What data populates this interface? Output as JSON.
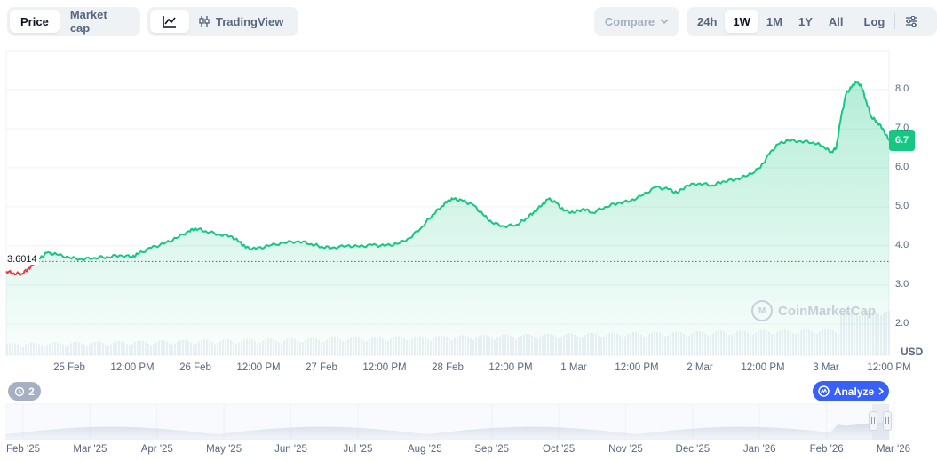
{
  "toolbar": {
    "type_tabs": [
      {
        "label": "Price",
        "active": true
      },
      {
        "label": "Market cap",
        "active": false
      }
    ],
    "view_tabs": [
      {
        "icon": "line-chart-icon",
        "label": "",
        "active": true
      },
      {
        "icon": "candlestick-icon",
        "label": "TradingView",
        "active": false
      }
    ],
    "compare_label": "Compare",
    "ranges": [
      {
        "label": "24h",
        "active": false
      },
      {
        "label": "1W",
        "active": true
      },
      {
        "label": "1M",
        "active": false
      },
      {
        "label": "1Y",
        "active": false
      },
      {
        "label": "All",
        "active": false
      }
    ],
    "scale_label": "Log",
    "settings_icon": "sliders-icon"
  },
  "chart_data": {
    "type": "line",
    "ylim": [
      1.2,
      9.0
    ],
    "yticks": [
      "2.0",
      "3.0",
      "4.0",
      "5.0",
      "6.0",
      "7.0",
      "8.0"
    ],
    "xticks": [
      "25 Feb",
      "12:00 PM",
      "26 Feb",
      "12:00 PM",
      "27 Feb",
      "12:00 PM",
      "28 Feb",
      "12:00 PM",
      "1 Mar",
      "12:00 PM",
      "2 Mar",
      "12:00 PM",
      "3 Mar",
      "12:00 PM"
    ],
    "xrange_days": [
      0,
      7
    ],
    "reference_price": 3.6014,
    "reference_label": "3.6014",
    "current_price": 6.7,
    "current_label": "6.7",
    "unit": "USD",
    "grid": true,
    "line_color": "#16c784",
    "down_color": "#ea3943",
    "points": [
      [
        0.0,
        3.35
      ],
      [
        0.06,
        3.3
      ],
      [
        0.12,
        3.28
      ],
      [
        0.17,
        3.4
      ],
      [
        0.22,
        3.55
      ],
      [
        0.27,
        3.68
      ],
      [
        0.32,
        3.82
      ],
      [
        0.4,
        3.78
      ],
      [
        0.5,
        3.7
      ],
      [
        0.6,
        3.66
      ],
      [
        0.7,
        3.7
      ],
      [
        0.8,
        3.72
      ],
      [
        0.9,
        3.76
      ],
      [
        1.0,
        3.72
      ],
      [
        1.05,
        3.8
      ],
      [
        1.15,
        3.95
      ],
      [
        1.25,
        4.05
      ],
      [
        1.35,
        4.2
      ],
      [
        1.45,
        4.38
      ],
      [
        1.5,
        4.45
      ],
      [
        1.58,
        4.38
      ],
      [
        1.68,
        4.3
      ],
      [
        1.78,
        4.25
      ],
      [
        1.85,
        4.1
      ],
      [
        1.9,
        3.95
      ],
      [
        1.98,
        3.92
      ],
      [
        2.08,
        4.0
      ],
      [
        2.2,
        4.08
      ],
      [
        2.32,
        4.12
      ],
      [
        2.42,
        4.05
      ],
      [
        2.5,
        3.98
      ],
      [
        2.58,
        3.95
      ],
      [
        2.7,
        4.0
      ],
      [
        2.8,
        3.98
      ],
      [
        2.9,
        4.02
      ],
      [
        3.0,
        4.0
      ],
      [
        3.1,
        4.05
      ],
      [
        3.2,
        4.2
      ],
      [
        3.3,
        4.5
      ],
      [
        3.38,
        4.8
      ],
      [
        3.45,
        5.0
      ],
      [
        3.5,
        5.15
      ],
      [
        3.55,
        5.2
      ],
      [
        3.62,
        5.15
      ],
      [
        3.7,
        5.05
      ],
      [
        3.78,
        4.8
      ],
      [
        3.85,
        4.6
      ],
      [
        3.95,
        4.5
      ],
      [
        4.05,
        4.55
      ],
      [
        4.12,
        4.7
      ],
      [
        4.18,
        4.85
      ],
      [
        4.25,
        5.05
      ],
      [
        4.3,
        5.2
      ],
      [
        4.36,
        5.1
      ],
      [
        4.42,
        4.9
      ],
      [
        4.5,
        4.85
      ],
      [
        4.58,
        4.95
      ],
      [
        4.65,
        4.85
      ],
      [
        4.75,
        5.0
      ],
      [
        4.85,
        5.1
      ],
      [
        4.95,
        5.15
      ],
      [
        5.05,
        5.3
      ],
      [
        5.15,
        5.5
      ],
      [
        5.25,
        5.45
      ],
      [
        5.32,
        5.35
      ],
      [
        5.4,
        5.55
      ],
      [
        5.5,
        5.6
      ],
      [
        5.6,
        5.55
      ],
      [
        5.68,
        5.65
      ],
      [
        5.78,
        5.7
      ],
      [
        5.88,
        5.8
      ],
      [
        5.98,
        6.0
      ],
      [
        6.05,
        6.35
      ],
      [
        6.12,
        6.6
      ],
      [
        6.2,
        6.7
      ],
      [
        6.3,
        6.68
      ],
      [
        6.4,
        6.65
      ],
      [
        6.48,
        6.55
      ],
      [
        6.54,
        6.4
      ],
      [
        6.58,
        6.5
      ],
      [
        6.62,
        7.3
      ],
      [
        6.66,
        7.9
      ],
      [
        6.7,
        8.05
      ],
      [
        6.74,
        8.2
      ],
      [
        6.78,
        8.1
      ],
      [
        6.82,
        7.7
      ],
      [
        6.86,
        7.3
      ],
      [
        6.9,
        7.2
      ],
      [
        6.95,
        7.0
      ],
      [
        7.0,
        6.7
      ]
    ]
  },
  "watermark": "CoinMarketCap",
  "history_count": "2",
  "analyze_label": "Analyze",
  "navigator": {
    "labels": [
      "Feb '25",
      "Mar '25",
      "Apr '25",
      "May '25",
      "Jun '25",
      "Jul '25",
      "Aug '25",
      "Sep '25",
      "Oct '25",
      "Nov '25",
      "Dec '25",
      "Jan '26",
      "Feb '26",
      "Mar '26"
    ]
  }
}
